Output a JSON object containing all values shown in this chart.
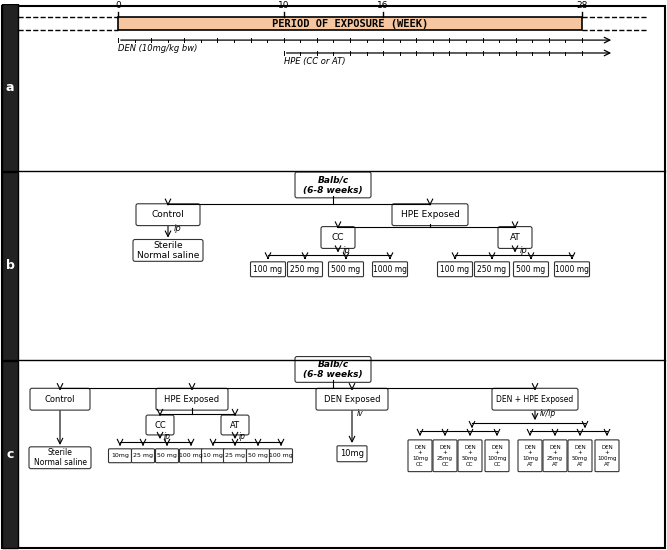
{
  "bg_color": "#ffffff",
  "panel_a": {
    "title": "PERIOD OF EXPOSURE (WEEK)",
    "title_bg": "#f5c6a0",
    "ticks": [
      0,
      10,
      16,
      28
    ],
    "den_label": "DEN (10mg/kg bw)",
    "hpe_label": "HPE (CC or AT)"
  },
  "panel_b": {
    "root": "Balb/c\n(6-8 weeks)",
    "cc_doses": [
      "100 mg",
      "250 mg",
      "500 mg",
      "1000 mg"
    ],
    "at_doses": [
      "100 mg",
      "250 mg",
      "500 mg",
      "1000 mg"
    ]
  },
  "panel_c": {
    "root": "Balb/c\n(6-8 weeks)",
    "cc_doses": [
      "10mg",
      "25 mg",
      "50 mg",
      "100 mg"
    ],
    "at_doses": [
      "10 mg",
      "25 mg",
      "50 mg",
      "100 mg"
    ],
    "den_leaf": "10mg",
    "den_hpe_cc_doses": [
      "DEN\n+\n10mg\nCC",
      "DEN\n+\n25mg\nCC",
      "DEN\n+\n50mg\nCC",
      "DEN\n+\n100mg\nCC"
    ],
    "den_hpe_at_doses": [
      "DEN\n+\n10mg\nAT",
      "DEN\n+\n25mg\nAT",
      "DEN\n+\n50mg\nAT",
      "DEN\n+\n100mg\nAT"
    ]
  }
}
